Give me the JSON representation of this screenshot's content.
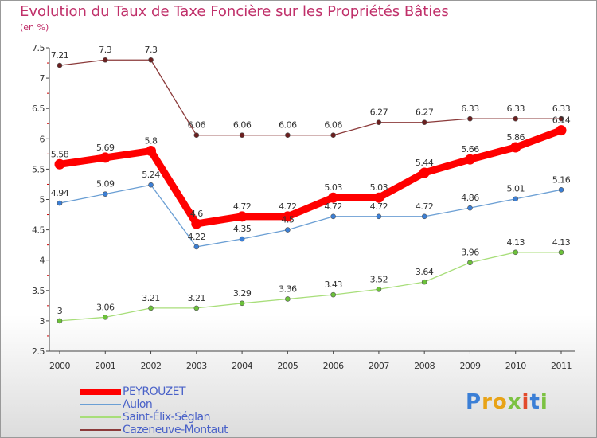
{
  "title": "Evolution du Taux de Taxe Foncière sur les Propriétés Bâties",
  "subtitle": "(en %)",
  "logo": {
    "text": "Proxiti",
    "letters": [
      {
        "ch": "P",
        "color": "#3b7fd6"
      },
      {
        "ch": "r",
        "color": "#e8a317"
      },
      {
        "ch": "o",
        "color": "#e8a317"
      },
      {
        "ch": "x",
        "color": "#7cc242"
      },
      {
        "ch": "i",
        "color": "#e24a2b"
      },
      {
        "ch": "t",
        "color": "#3b7fd6"
      },
      {
        "ch": "i",
        "color": "#7cc242"
      }
    ]
  },
  "chart_data": {
    "type": "line",
    "title": "Evolution du Taux de Taxe Foncière sur les Propriétés Bâties",
    "ylabel": "(en %)",
    "xlabel": "",
    "x": [
      "2000",
      "2001",
      "2002",
      "2003",
      "2004",
      "2005",
      "2006",
      "2007",
      "2008",
      "2009",
      "2010",
      "2011"
    ],
    "ylim": [
      2.5,
      7.5
    ],
    "yticks": [
      "2.5",
      "3",
      "3.5",
      "4",
      "4.5",
      "5",
      "5.5",
      "6",
      "6.5",
      "7",
      "7.5"
    ],
    "grid": false,
    "legend_position": "bottom-left",
    "series": [
      {
        "name": "PEYROUZET",
        "color": "#ff0000",
        "emphasis": true,
        "values": [
          5.58,
          5.69,
          5.8,
          4.6,
          4.72,
          4.72,
          5.03,
          5.03,
          5.44,
          5.66,
          5.86,
          6.14
        ],
        "labels": [
          "5.58",
          "5.69",
          "5.8",
          "4.6",
          "4.72",
          "4.72",
          "5.03",
          "5.03",
          "5.44",
          "5.66",
          "5.86",
          "6.14"
        ]
      },
      {
        "name": "Aulon",
        "color": "#6b9fd4",
        "marker": "#3b7fd6",
        "values": [
          4.94,
          5.09,
          5.24,
          4.22,
          4.35,
          4.5,
          4.72,
          4.72,
          4.72,
          4.86,
          5.01,
          5.16
        ],
        "labels": [
          "4.94",
          "5.09",
          "5.24",
          "4.22",
          "4.35",
          "4.5",
          "4.72",
          "4.72",
          "4.72",
          "4.86",
          "5.01",
          "5.16"
        ]
      },
      {
        "name": "Saint-Élix-Séglan",
        "color": "#a8de7a",
        "marker": "#6cc23a",
        "values": [
          3,
          3.06,
          3.21,
          3.21,
          3.29,
          3.36,
          3.43,
          3.52,
          3.64,
          3.96,
          4.13,
          4.13
        ],
        "labels": [
          "3",
          "3.06",
          "3.21",
          "3.21",
          "3.29",
          "3.36",
          "3.43",
          "3.52",
          "3.64",
          "3.96",
          "4.13",
          "4.13"
        ]
      },
      {
        "name": "Cazeneuve-Montaut",
        "color": "#8b3a3a",
        "marker": "#6b1f1f",
        "values": [
          7.21,
          7.3,
          7.3,
          6.06,
          6.06,
          6.06,
          6.06,
          6.27,
          6.27,
          6.33,
          6.33,
          6.33
        ],
        "labels": [
          "7.21",
          "7.3",
          "7.3",
          "6.06",
          "6.06",
          "6.06",
          "6.06",
          "6.27",
          "6.27",
          "6.33",
          "6.33",
          "6.33"
        ]
      }
    ]
  }
}
